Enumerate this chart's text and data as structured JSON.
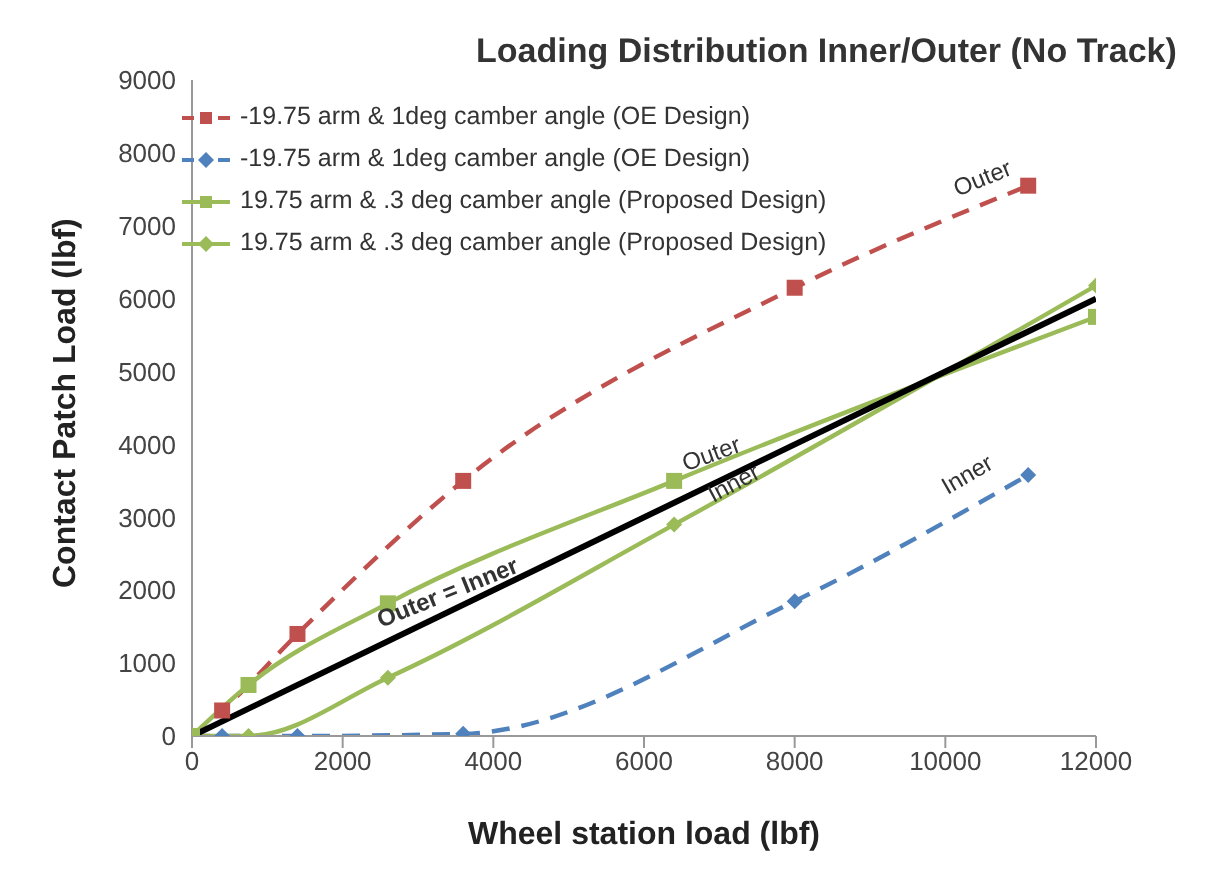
{
  "chart_data": {
    "type": "line",
    "title": "Loading Distribution Inner/Outer (No Track)",
    "xlabel": "Wheel station load  (lbf)",
    "ylabel": "Contact Patch Load (lbf)",
    "xlim": [
      0,
      12000
    ],
    "xticks": [
      0,
      2000,
      4000,
      6000,
      8000,
      10000,
      12000
    ],
    "ylim": [
      0,
      9000
    ],
    "yticks": [
      0,
      1000,
      2000,
      3000,
      4000,
      5000,
      6000,
      7000,
      8000,
      9000
    ],
    "grid": false,
    "legend": "top left",
    "series": [
      {
        "name": "-19.75 arm & 1deg camber angle (OE Design)",
        "color": "#c0504d",
        "line_style": "dashed",
        "marker": "square",
        "x": [
          0,
          400,
          1400,
          3600,
          8000,
          11100
        ],
        "values": [
          0,
          350,
          1400,
          3500,
          6150,
          7550
        ]
      },
      {
        "name": "-19.75 arm & 1deg camber angle (OE Design)",
        "color": "#4f81bd",
        "line_style": "dashed",
        "marker": "diamond",
        "x": [
          0,
          400,
          1400,
          3600,
          8000,
          11100
        ],
        "values": [
          0,
          0,
          0,
          30,
          1850,
          3580
        ]
      },
      {
        "name": "19.75 arm & .3 deg camber angle (Proposed Design)",
        "color": "#9bbb59",
        "line_style": "solid",
        "marker": "square",
        "x": [
          0,
          750,
          2600,
          6400,
          12000
        ],
        "values": [
          0,
          700,
          1820,
          3500,
          5750
        ]
      },
      {
        "name": "19.75 arm & .3 deg camber angle (Proposed Design)",
        "color": "#9bbb59",
        "line_style": "solid",
        "marker": "diamond",
        "x": [
          0,
          750,
          2600,
          6400,
          12000
        ],
        "values": [
          0,
          0,
          800,
          2900,
          6180
        ]
      },
      {
        "color": "#000000",
        "line_style": "solid",
        "marker": "none",
        "x": [
          0,
          12000
        ],
        "values": [
          0,
          6000
        ]
      }
    ],
    "annotations": [
      {
        "text": "Outer",
        "x": 10500,
        "y": 7250
      },
      {
        "text": "Outer",
        "x": 6900,
        "y": 3850
      },
      {
        "text": "Inner",
        "x": 7200,
        "y": 3450
      },
      {
        "text": "Inner",
        "x": 10300,
        "y": 3130
      },
      {
        "text": "Outer = Inner",
        "x": 3400,
        "y": 1700
      }
    ]
  }
}
